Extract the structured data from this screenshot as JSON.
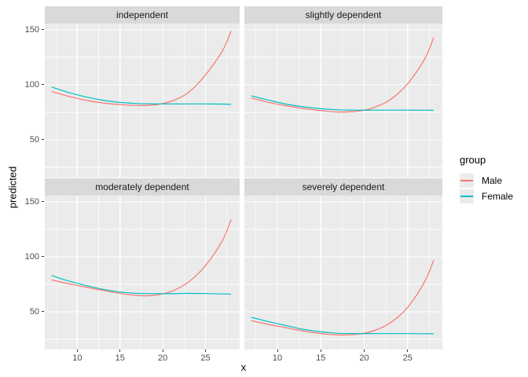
{
  "chart_data": {
    "type": "line",
    "title": "",
    "xlabel": "x",
    "ylabel": "predicted",
    "x_domain": [
      6.2,
      29.0
    ],
    "y_domain": [
      15.7,
      155.7
    ],
    "x_ticks": [
      10,
      15,
      20,
      25
    ],
    "y_ticks": [
      50,
      100,
      150
    ],
    "x_minor_gridlines": [
      7.5,
      12.5,
      17.5,
      22.5,
      27.5
    ],
    "y_minor_gridlines": [
      25,
      75,
      125
    ],
    "grid": "on",
    "legend_position": "right",
    "legend": {
      "title": "group",
      "entries": [
        {
          "label": "Male",
          "color": "#F8766D"
        },
        {
          "label": "Female",
          "color": "#00BFC4"
        }
      ]
    },
    "x": [
      7,
      9,
      11,
      13,
      15,
      17,
      19,
      21,
      23,
      25,
      27,
      28
    ],
    "facets": [
      {
        "title": "independent",
        "series": [
          {
            "name": "Male",
            "values": [
              94,
              89.5,
              86,
              83.5,
              82,
              81.3,
              81.7,
              85,
              93,
              109,
              131,
              149
            ]
          },
          {
            "name": "Female",
            "values": [
              98,
              93,
              89,
              86,
              84,
              83,
              82.7,
              82.6,
              82.6,
              82.6,
              82.5,
              82.2
            ]
          }
        ]
      },
      {
        "title": "slightly dependent",
        "series": [
          {
            "name": "Male",
            "values": [
              88,
              84,
              81,
              78.5,
              76.5,
              75.3,
              75.8,
              79,
              86.5,
              101,
              124,
              143
            ]
          },
          {
            "name": "Female",
            "values": [
              90,
              86,
              82.5,
              80,
              78.3,
              77.3,
              77,
              77,
              77,
              77,
              76.9,
              76.8
            ]
          }
        ]
      },
      {
        "title": "moderately dependent",
        "series": [
          {
            "name": "Male",
            "values": [
              79,
              75.5,
              72.5,
              69.5,
              66.8,
              64.8,
              65,
              68.5,
              77,
              92,
              115,
              134
            ]
          },
          {
            "name": "Female",
            "values": [
              83,
              78,
              74,
              70.5,
              68,
              66.8,
              66.5,
              66.5,
              66.8,
              66.6,
              66.3,
              66
            ]
          }
        ]
      },
      {
        "title": "severely dependent",
        "series": [
          {
            "name": "Male",
            "values": [
              42,
              38.5,
              35.5,
              32.5,
              30.3,
              29,
              29.4,
              32.5,
              40,
              54,
              78,
              97
            ]
          },
          {
            "name": "Female",
            "values": [
              45,
              41,
              37.5,
              34,
              31.8,
              30.5,
              30.2,
              30.2,
              30.2,
              30.2,
              30,
              30
            ]
          }
        ]
      }
    ],
    "colors": {
      "male": "#F8766D",
      "female": "#00BFC4",
      "panel_bg": "#EBEBEB",
      "strip_bg": "#D9D9D9",
      "strip_text": "#1A1A1A",
      "grid": "#FFFFFF",
      "tick_text": "#4D4D4D",
      "tick_mark": "#333333"
    }
  }
}
